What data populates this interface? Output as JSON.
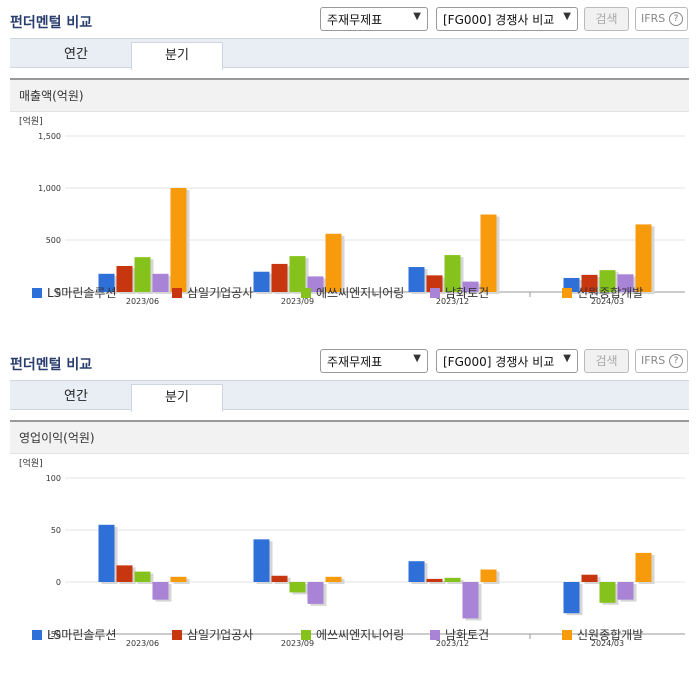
{
  "sections": [
    {
      "title": "펀더멘털 비교",
      "select1": "주재무제표",
      "select2": "[FG000] 경쟁사 비교",
      "search_label": "검색",
      "ifrs_label": "IFRS",
      "tabs": [
        "연간",
        "분기"
      ],
      "active_tab": "분기",
      "card_title": "매출액(억원)"
    },
    {
      "title": "펀더멘털 비교",
      "select1": "주재무제표",
      "select2": "[FG000] 경쟁사 비교",
      "search_label": "검색",
      "ifrs_label": "IFRS",
      "tabs": [
        "연간",
        "분기"
      ],
      "active_tab": "분기",
      "card_title": "영업이익(억원)"
    }
  ],
  "chart_data": [
    {
      "type": "bar",
      "unit_label": "[억원]",
      "categories": [
        "2023/06",
        "2023/09",
        "2023/12",
        "2024/03"
      ],
      "ylim": [
        0,
        1500
      ],
      "yticks": [
        "0",
        "500",
        "1,000",
        "1,500"
      ],
      "series": [
        {
          "name": "LS마린솔루션",
          "color": "#2f6fd8",
          "values": [
            175,
            195,
            240,
            135
          ]
        },
        {
          "name": "삼일기업공사",
          "color": "#c8360f",
          "values": [
            250,
            270,
            160,
            165
          ]
        },
        {
          "name": "에쓰씨엔지니어링",
          "color": "#86c21c",
          "values": [
            335,
            345,
            355,
            210
          ]
        },
        {
          "name": "남화토건",
          "color": "#a883d6",
          "values": [
            175,
            150,
            100,
            170
          ]
        },
        {
          "name": "신원종합개발",
          "color": "#f79a0b",
          "values": [
            1000,
            560,
            745,
            650
          ]
        }
      ]
    },
    {
      "type": "bar",
      "unit_label": "[억원]",
      "categories": [
        "2023/06",
        "2023/09",
        "2023/12",
        "2024/03"
      ],
      "ylim": [
        -50,
        100
      ],
      "yticks": [
        "-50",
        "0",
        "50",
        "100"
      ],
      "series": [
        {
          "name": "LS마린솔루션",
          "color": "#2f6fd8",
          "values": [
            55,
            41,
            20,
            -30
          ]
        },
        {
          "name": "삼일기업공사",
          "color": "#c8360f",
          "values": [
            16,
            6,
            3,
            7
          ]
        },
        {
          "name": "에쓰씨엔지니어링",
          "color": "#86c21c",
          "values": [
            10,
            -10,
            4,
            -20
          ]
        },
        {
          "name": "남화토건",
          "color": "#a883d6",
          "values": [
            -17,
            -21,
            -35,
            -17
          ]
        },
        {
          "name": "신원종합개발",
          "color": "#f79a0b",
          "values": [
            5,
            5,
            12,
            28
          ]
        }
      ]
    }
  ]
}
